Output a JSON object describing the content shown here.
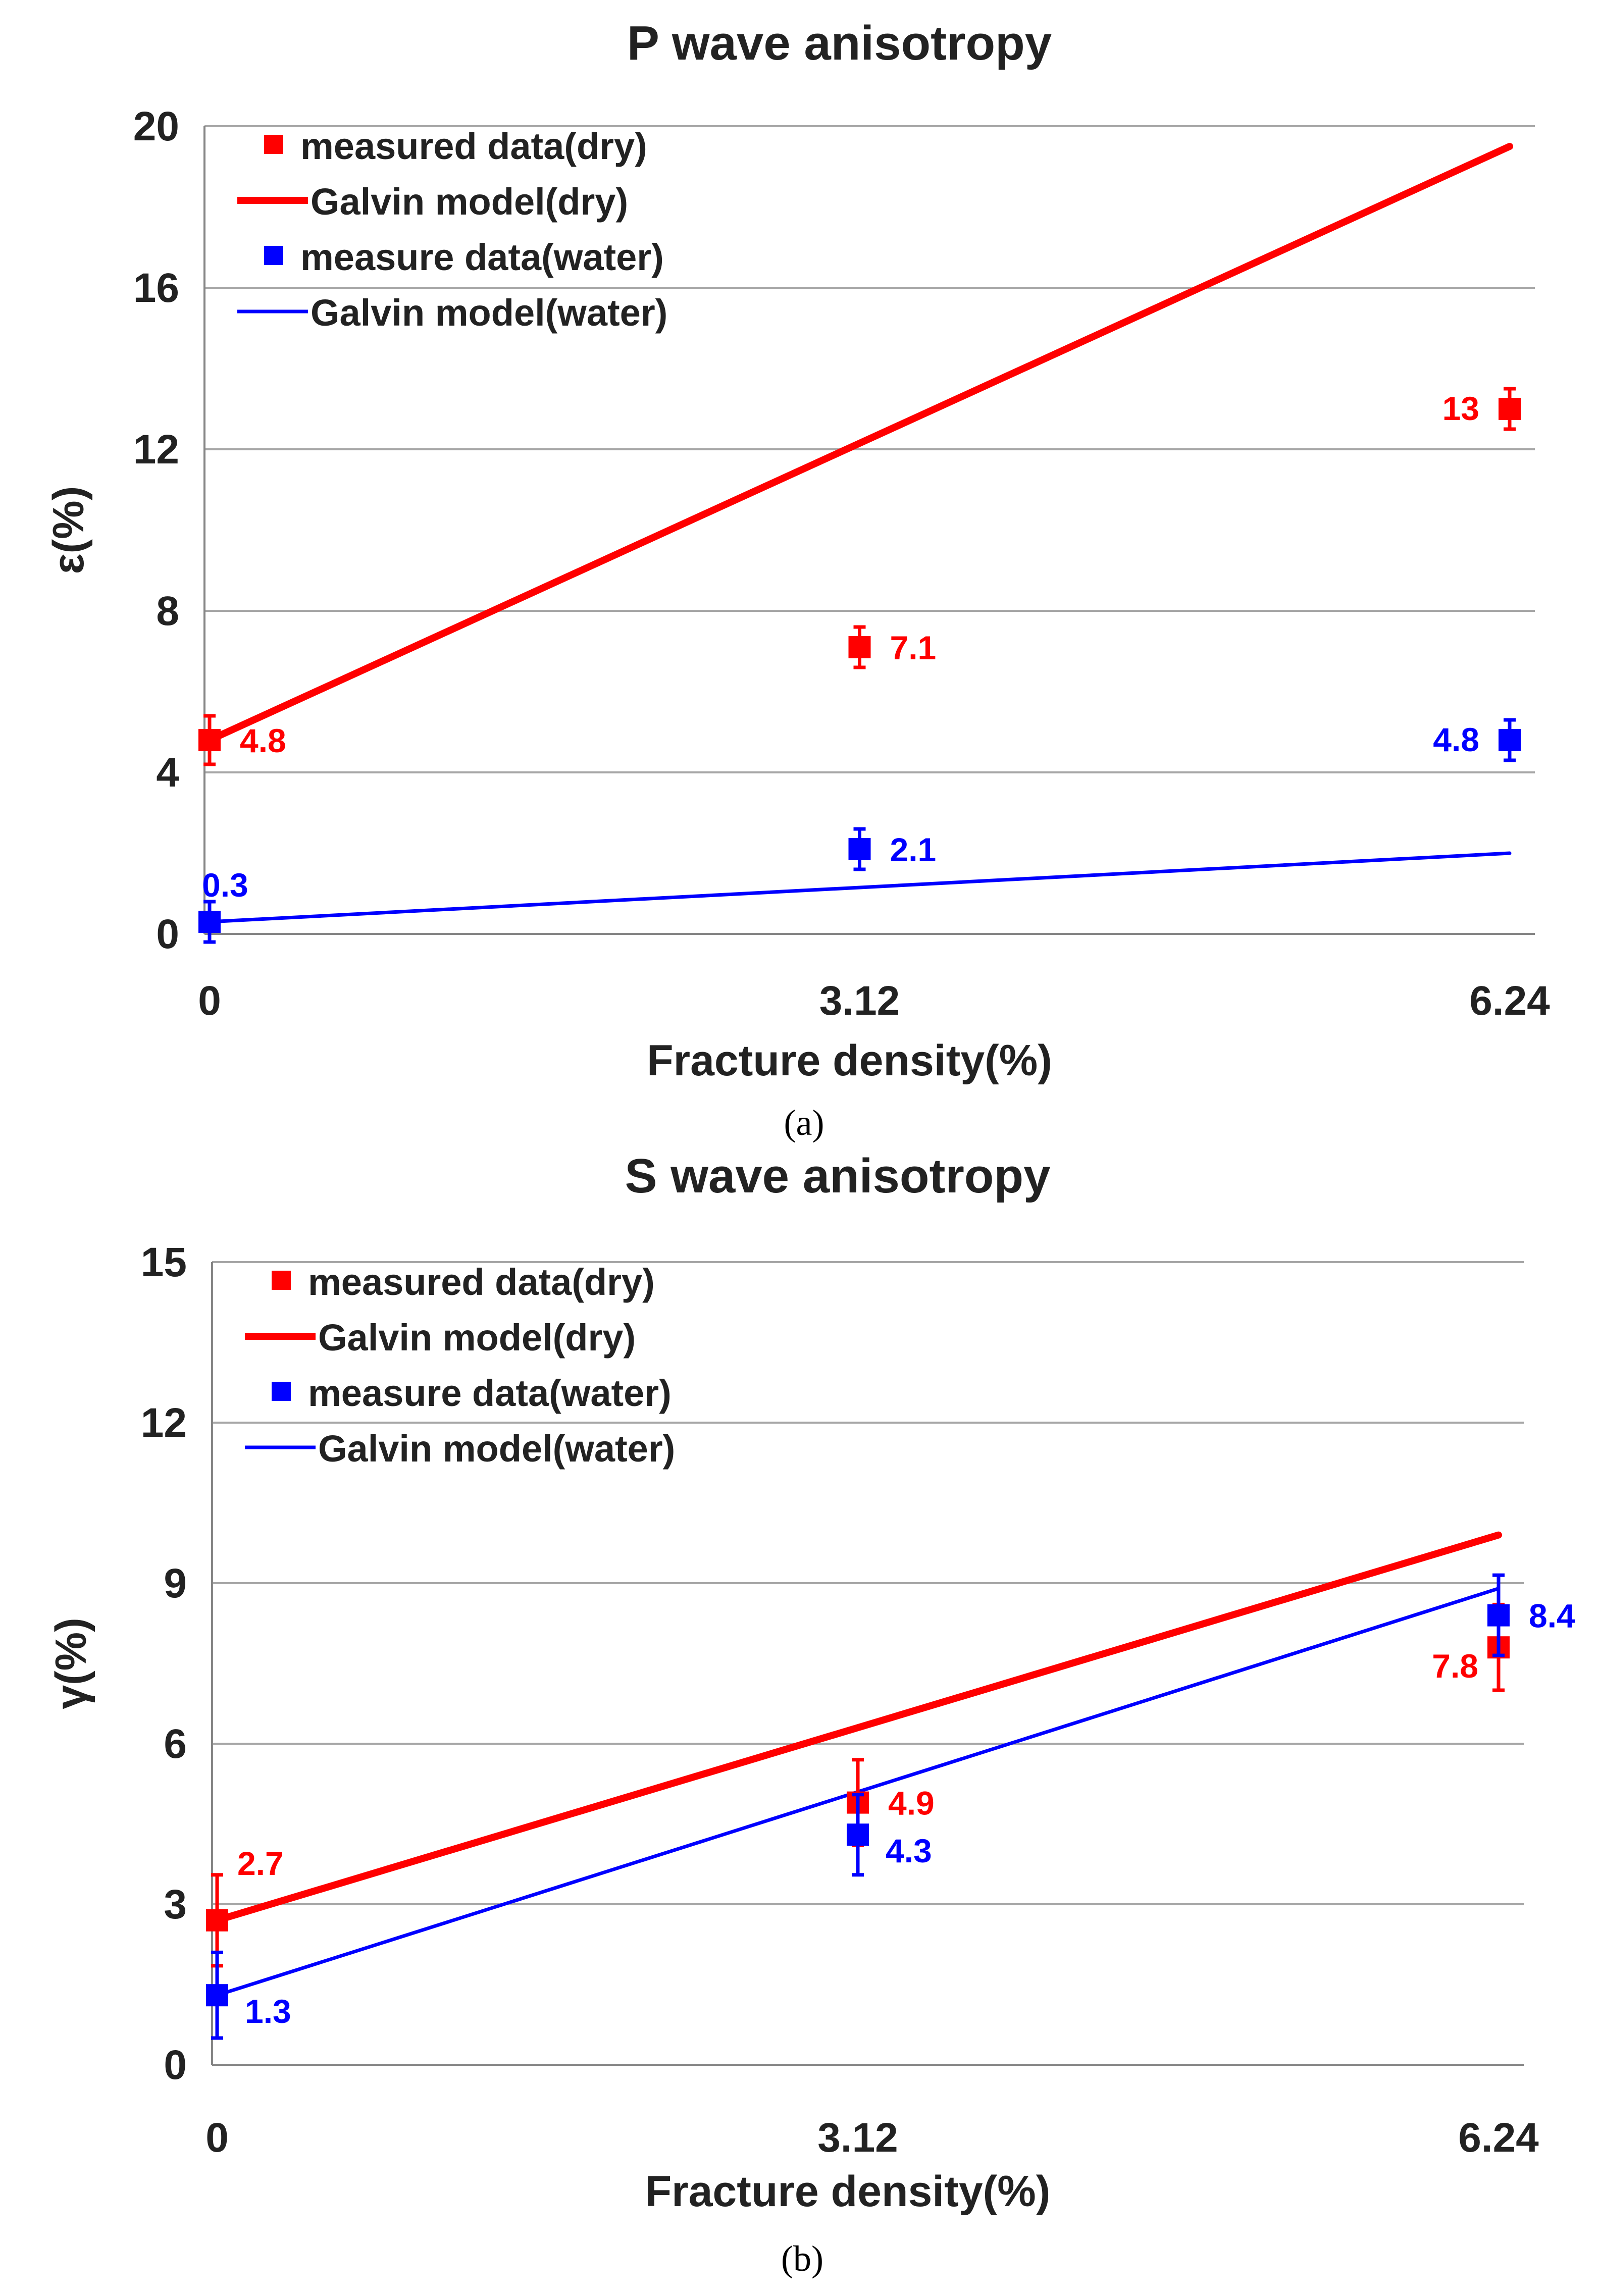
{
  "colors": {
    "dry": "#ff0000",
    "water": "#0000ff",
    "grid": "#a6a6a6",
    "axis": "#868686",
    "text": "#222222"
  },
  "chart_data": [
    {
      "type": "line+scatter",
      "title": "P wave anisotropy",
      "caption": "(a)",
      "xlabel": "Fracture density(%)",
      "ylabel": "ε(%)",
      "x_ticks": [
        "0",
        "3.12",
        "6.24"
      ],
      "x_values": [
        0,
        3.12,
        6.24
      ],
      "xlim": [
        0,
        6.24
      ],
      "ylim": [
        0,
        20
      ],
      "y_ticks": [
        0,
        4,
        8,
        12,
        16,
        20
      ],
      "grid": true,
      "legend_position": "top-left",
      "legend": [
        {
          "label": "measured data(dry)",
          "kind": "marker",
          "series": "dry"
        },
        {
          "label": "Galvin model(dry)",
          "kind": "line-thick",
          "series": "dry"
        },
        {
          "label": "measure data(water)",
          "kind": "marker",
          "series": "water"
        },
        {
          "label": "Galvin model(water)",
          "kind": "line-thin",
          "series": "water"
        }
      ],
      "measured": [
        {
          "name": "measured data(dry)",
          "color_key": "dry",
          "points": [
            {
              "x": 0,
              "y": 4.8,
              "err": 0.6,
              "label": "4.8",
              "label_side": "right"
            },
            {
              "x": 3.12,
              "y": 7.1,
              "err": 0.5,
              "label": "7.1",
              "label_side": "right"
            },
            {
              "x": 6.24,
              "y": 13,
              "err": 0.5,
              "label": "13",
              "label_side": "left"
            }
          ]
        },
        {
          "name": "measure data(water)",
          "color_key": "water",
          "points": [
            {
              "x": 0,
              "y": 0.3,
              "err": 0.5,
              "label": "0.3",
              "label_side": "above"
            },
            {
              "x": 3.12,
              "y": 2.1,
              "err": 0.5,
              "label": "2.1",
              "label_side": "right"
            },
            {
              "x": 6.24,
              "y": 4.8,
              "err": 0.5,
              "label": "4.8",
              "label_side": "left"
            }
          ]
        }
      ],
      "models": [
        {
          "name": "Galvin model(dry)",
          "color_key": "dry",
          "weight": "thick",
          "x": [
            0,
            6.24
          ],
          "y": [
            4.8,
            19.5
          ]
        },
        {
          "name": "Galvin model(water)",
          "color_key": "water",
          "weight": "thin",
          "x": [
            0,
            6.24
          ],
          "y": [
            0.3,
            2.0
          ]
        }
      ]
    },
    {
      "type": "line+scatter",
      "title": "S wave anisotropy",
      "caption": "(b)",
      "xlabel": "Fracture density(%)",
      "ylabel": "γ(%)",
      "x_ticks": [
        "0",
        "3.12",
        "6.24"
      ],
      "x_values": [
        0,
        3.12,
        6.24
      ],
      "xlim": [
        0,
        6.24
      ],
      "ylim": [
        0,
        15
      ],
      "y_ticks": [
        0,
        3,
        6,
        9,
        12,
        15
      ],
      "grid": true,
      "legend_position": "top-left",
      "legend": [
        {
          "label": "measured data(dry)",
          "kind": "marker",
          "series": "dry"
        },
        {
          "label": "Galvin model(dry)",
          "kind": "line-thick",
          "series": "dry"
        },
        {
          "label": "measure data(water)",
          "kind": "marker",
          "series": "water"
        },
        {
          "label": "Galvin model(water)",
          "kind": "line-thin",
          "series": "water"
        }
      ],
      "measured": [
        {
          "name": "measured data(dry)",
          "color_key": "dry",
          "points": [
            {
              "x": 0,
              "y": 2.7,
              "err": 0.85,
              "label": "2.7",
              "label_side": "above-right"
            },
            {
              "x": 3.12,
              "y": 4.9,
              "err": 0.8,
              "label": "4.9",
              "label_side": "right"
            },
            {
              "x": 6.24,
              "y": 7.8,
              "err": 0.8,
              "label": "7.8",
              "label_side": "left-below"
            }
          ]
        },
        {
          "name": "measure data(water)",
          "color_key": "water",
          "points": [
            {
              "x": 0,
              "y": 1.3,
              "err": 0.8,
              "label": "1.3",
              "label_side": "right-below"
            },
            {
              "x": 3.12,
              "y": 4.3,
              "err": 0.75,
              "label": "4.3",
              "label_side": "right-below"
            },
            {
              "x": 6.24,
              "y": 8.4,
              "err": 0.75,
              "label": "8.4",
              "label_side": "right"
            }
          ]
        }
      ],
      "models": [
        {
          "name": "Galvin model(dry)",
          "color_key": "dry",
          "weight": "thick",
          "x": [
            0,
            6.24
          ],
          "y": [
            2.7,
            9.9
          ]
        },
        {
          "name": "Galvin model(water)",
          "color_key": "water",
          "weight": "thin",
          "x": [
            0,
            6.24
          ],
          "y": [
            1.3,
            8.9
          ]
        }
      ]
    }
  ]
}
